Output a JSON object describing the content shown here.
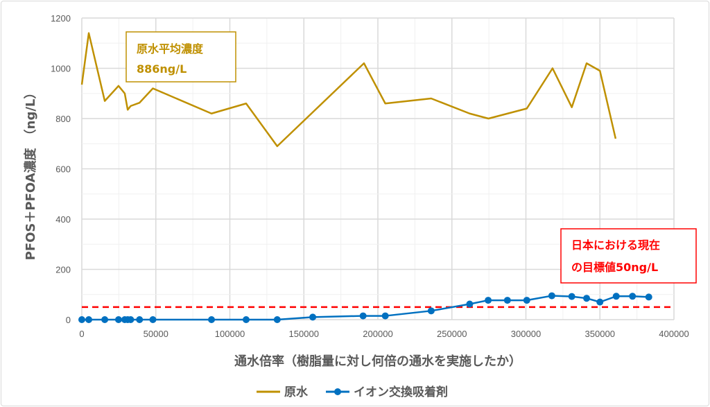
{
  "chart_data": {
    "type": "line",
    "title": "",
    "xlabel": "通水倍率（樹脂量に対し何倍の通水を実施したか）",
    "ylabel": "PFOS＋PFOA濃度　（ng/L）",
    "xlim": [
      0,
      400000
    ],
    "ylim": [
      0,
      1200
    ],
    "xticks": [
      "0",
      "50000",
      "100000",
      "150000",
      "200000",
      "250000",
      "300000",
      "350000",
      "400000"
    ],
    "yticks": [
      "0",
      "200",
      "400",
      "600",
      "800",
      "1000",
      "1200"
    ],
    "grid": true,
    "legend_position": "bottom",
    "series": [
      {
        "name": "原水",
        "color": "#bf9000",
        "markers": false,
        "x": [
          0,
          4700,
          15500,
          24800,
          29000,
          31000,
          33000,
          39000,
          48000,
          87600,
          111000,
          132000,
          190600,
          205000,
          236000,
          262000,
          274700,
          300600,
          318000,
          331000,
          341000,
          350000,
          360600
        ],
        "y": [
          935,
          1140,
          870,
          930,
          900,
          835,
          850,
          863,
          920,
          820,
          860,
          690,
          1020,
          860,
          880,
          820,
          800,
          840,
          1000,
          845,
          1020,
          990,
          720
        ]
      },
      {
        "name": "イオン交換吸着剤",
        "color": "#0070c0",
        "markers": true,
        "x": [
          0,
          4700,
          15500,
          24800,
          29000,
          31000,
          33000,
          39000,
          48000,
          87600,
          111000,
          132000,
          156000,
          190000,
          205000,
          236000,
          262000,
          274500,
          287500,
          300600,
          317500,
          331000,
          341000,
          350000,
          361000,
          372000,
          383000
        ],
        "y": [
          0,
          0,
          0,
          0,
          0,
          0,
          0,
          0,
          0,
          0,
          0,
          0,
          10,
          15,
          15,
          35,
          62,
          77,
          77,
          77,
          95,
          92,
          85,
          70,
          93,
          93,
          90
        ]
      }
    ],
    "reference_line": {
      "value": 50,
      "color": "#ff0000",
      "style": "dashed"
    },
    "annotations": [
      {
        "lines": [
          "原水平均濃度",
          "886ng/L"
        ],
        "color": "#bf9000"
      },
      {
        "lines": [
          "日本における現在",
          "の目標値50ng/L"
        ],
        "color": "#ff0000"
      }
    ]
  }
}
